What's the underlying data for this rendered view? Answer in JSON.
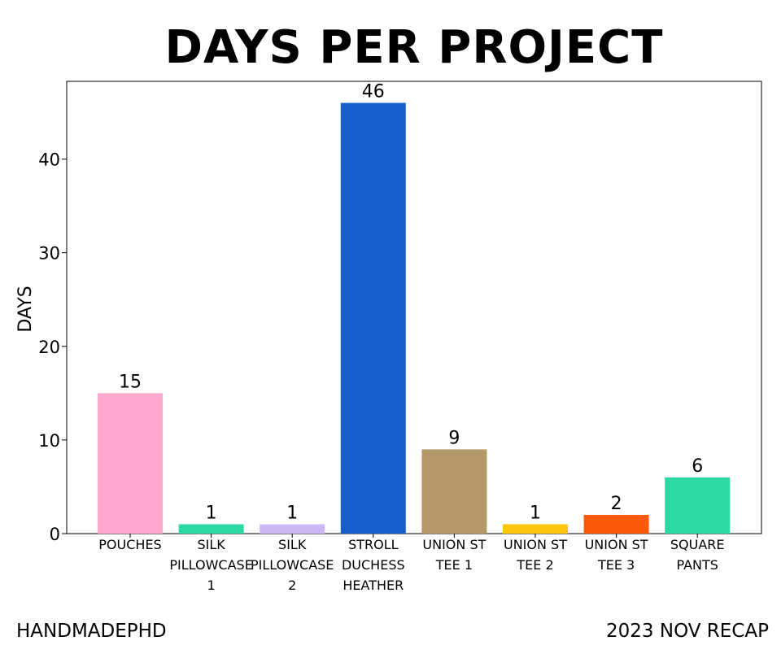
{
  "chart_data": {
    "type": "bar",
    "title": "DAYS PER PROJECT",
    "xlabel": "",
    "ylabel": "DAYS",
    "categories": [
      [
        "POUCHES"
      ],
      [
        "SILK",
        "PILLOWCASE",
        "1"
      ],
      [
        "SILK",
        "PILLOWCASE",
        "2"
      ],
      [
        "STROLL",
        "DUCHESS",
        "HEATHER"
      ],
      [
        "UNION ST",
        "TEE 1"
      ],
      [
        "UNION ST",
        "TEE 2"
      ],
      [
        "UNION ST",
        "TEE 3"
      ],
      [
        "SQUARE",
        "PANTS"
      ]
    ],
    "values": [
      15,
      1,
      1,
      46,
      9,
      1,
      2,
      6
    ],
    "colors": [
      "#ffa8d0",
      "#2cd8a4",
      "#c9b8f5",
      "#175dcc",
      "#b49a68",
      "#fcc40a",
      "#fc5a0a",
      "#2cd8a4"
    ],
    "data_labels": [
      "15",
      "1",
      "1",
      "46",
      "9",
      "1",
      "2",
      "6"
    ],
    "ylim": [
      0,
      48.3
    ],
    "yticks": [
      0,
      10,
      20,
      30,
      40
    ],
    "ytick_labels": [
      "0",
      "10",
      "20",
      "30",
      "40"
    ],
    "grid": false,
    "legend": "none"
  },
  "footer": {
    "left": "HANDMADEPHD",
    "right": "2023 NOV RECAP"
  }
}
